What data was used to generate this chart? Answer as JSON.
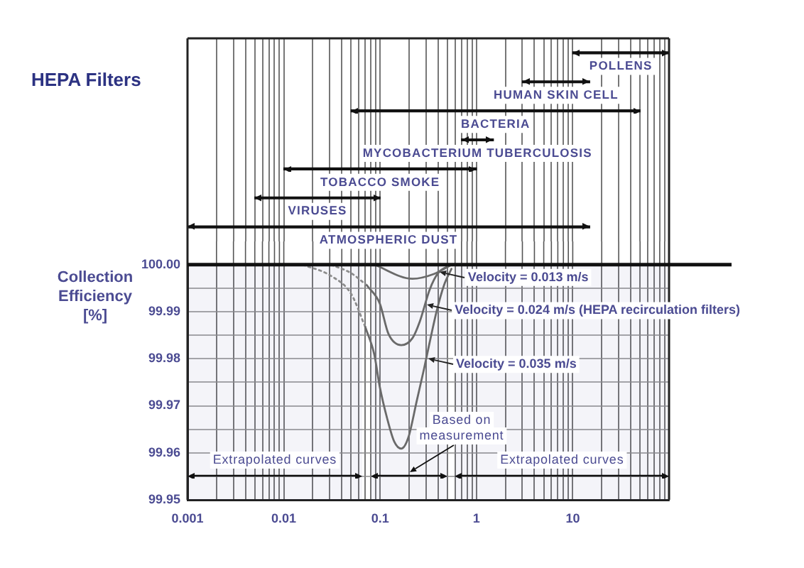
{
  "chart_data": [
    {
      "type": "bar",
      "orientation": "horizontal",
      "title": "HEPA Filters",
      "categories": [
        "POLLENS",
        "HUMAN SKIN CELL",
        "BACTERIA",
        "MYCOBACTERIUM TUBERCULOSIS",
        "TOBACCO SMOKE",
        "VIRUSES",
        "ATMOSPHERIC DUST"
      ],
      "base": [
        10,
        3,
        0.05,
        0.7,
        0.01,
        0.005,
        0.001
      ],
      "values": [
        90,
        12,
        49.95,
        0.8,
        0.99,
        0.095,
        14.999
      ],
      "color": "#111111",
      "log": "x",
      "grid": "x",
      "tick_labels": false,
      "xlim": [
        0.001,
        100
      ],
      "xticks": [
        0.001,
        {
          "value": 0.002,
          "label": null
        },
        {
          "value": 0.003,
          "label": null
        },
        {
          "value": 0.004,
          "label": null
        },
        {
          "value": 0.005,
          "label": null
        },
        {
          "value": 0.006,
          "label": null
        },
        {
          "value": 0.007,
          "label": null
        },
        {
          "value": 0.008,
          "label": null
        },
        {
          "value": 0.009,
          "label": null
        },
        0.01,
        {
          "value": 0.02,
          "label": null
        },
        {
          "value": 0.03,
          "label": null
        },
        {
          "value": 0.04,
          "label": null
        },
        {
          "value": 0.05,
          "label": null
        },
        {
          "value": 0.06,
          "label": null
        },
        {
          "value": 0.07,
          "label": null
        },
        {
          "value": 0.08,
          "label": null
        },
        {
          "value": 0.09,
          "label": null
        },
        0.1,
        {
          "value": 0.2,
          "label": null
        },
        {
          "value": 0.3,
          "label": null
        },
        {
          "value": 0.4,
          "label": null
        },
        {
          "value": 0.5,
          "label": null
        },
        {
          "value": 0.6,
          "label": null
        },
        {
          "value": 0.7,
          "label": null
        },
        {
          "value": 0.8,
          "label": null
        },
        {
          "value": 0.9,
          "label": null
        },
        1,
        {
          "value": 2,
          "label": null
        },
        {
          "value": 3,
          "label": null
        },
        {
          "value": 4,
          "label": null
        },
        {
          "value": 5,
          "label": null
        },
        {
          "value": 6,
          "label": null
        },
        {
          "value": 7,
          "label": null
        },
        {
          "value": 8,
          "label": null
        },
        {
          "value": 9,
          "label": null
        },
        10,
        {
          "value": 20,
          "label": null
        },
        {
          "value": 30,
          "label": null
        },
        {
          "value": 40,
          "label": null
        },
        {
          "value": 50,
          "label": null
        },
        {
          "value": 60,
          "label": null
        },
        {
          "value": 70,
          "label": null
        },
        {
          "value": 80,
          "label": null
        },
        {
          "value": 90,
          "label": null
        },
        {
          "value": 100,
          "label": null
        }
      ]
    },
    {
      "type": "line",
      "ylabel": "Collection Efficiency [%]",
      "log": "x",
      "grid": true,
      "xlim": [
        0.001,
        100
      ],
      "ylim": [
        99.95,
        100
      ],
      "xticks": [
        0.001,
        {
          "value": 0.002,
          "label": null
        },
        {
          "value": 0.003,
          "label": null
        },
        {
          "value": 0.004,
          "label": null
        },
        {
          "value": 0.005,
          "label": null
        },
        {
          "value": 0.006,
          "label": null
        },
        {
          "value": 0.007,
          "label": null
        },
        {
          "value": 0.008,
          "label": null
        },
        {
          "value": 0.009,
          "label": null
        },
        0.01,
        {
          "value": 0.02,
          "label": null
        },
        {
          "value": 0.03,
          "label": null
        },
        {
          "value": 0.04,
          "label": null
        },
        {
          "value": 0.05,
          "label": null
        },
        {
          "value": 0.06,
          "label": null
        },
        {
          "value": 0.07,
          "label": null
        },
        {
          "value": 0.08,
          "label": null
        },
        {
          "value": 0.09,
          "label": null
        },
        0.1,
        {
          "value": 0.2,
          "label": null
        },
        {
          "value": 0.3,
          "label": null
        },
        {
          "value": 0.4,
          "label": null
        },
        {
          "value": 0.5,
          "label": null
        },
        {
          "value": 0.6,
          "label": null
        },
        {
          "value": 0.7,
          "label": null
        },
        {
          "value": 0.8,
          "label": null
        },
        {
          "value": 0.9,
          "label": null
        },
        1,
        {
          "value": 2,
          "label": null
        },
        {
          "value": 3,
          "label": null
        },
        {
          "value": 4,
          "label": null
        },
        {
          "value": 5,
          "label": null
        },
        {
          "value": 6,
          "label": null
        },
        {
          "value": 7,
          "label": null
        },
        {
          "value": 8,
          "label": null
        },
        {
          "value": 9,
          "label": null
        },
        10,
        {
          "value": 20,
          "label": null
        },
        {
          "value": 30,
          "label": null
        },
        {
          "value": 40,
          "label": null
        },
        {
          "value": 50,
          "label": null
        },
        {
          "value": 60,
          "label": null
        },
        {
          "value": 70,
          "label": null
        },
        {
          "value": 80,
          "label": null
        },
        {
          "value": 90,
          "label": null
        },
        {
          "value": 100,
          "label": null
        }
      ],
      "yticks": [
        99.95,
        {
          "value": 99.955,
          "label": null
        },
        99.96,
        {
          "value": 99.965,
          "label": null
        },
        99.97,
        {
          "value": 99.975,
          "label": null
        },
        99.98,
        {
          "value": 99.985,
          "label": null
        },
        99.99,
        {
          "value": 99.995,
          "label": null
        },
        {
          "value": 100,
          "label": "100.00"
        }
      ],
      "series": [
        {
          "name": "Velocity = 0.013 m/s",
          "color": "#6a6a6a",
          "x": [
            0.087,
            0.217,
            0.36,
            0.55
          ],
          "values": [
            100,
            99.997,
            99.998,
            100
          ]
        },
        {
          "name": "Velocity = 0.024 m/s (HEPA recirculation filters)",
          "color": "#6a6a6a",
          "x": [
            0.073,
            0.099,
            0.122,
            0.166,
            0.217,
            0.258,
            0.327,
            0.4,
            0.55
          ],
          "values": [
            99.9956,
            99.9918,
            99.9853,
            99.9829,
            99.9844,
            99.9879,
            99.9947,
            99.9982,
            100
          ]
        },
        {
          "name": "Velocity = 0.035 m/s",
          "color": "#6a6a6a",
          "x": [
            0.07,
            0.087,
            0.099,
            0.118,
            0.14,
            0.166,
            0.196,
            0.241,
            0.286,
            0.327,
            0.388,
            0.46,
            0.55
          ],
          "values": [
            99.9868,
            99.9809,
            99.9741,
            99.9674,
            99.9624,
            99.9609,
            99.9632,
            99.9712,
            99.9779,
            99.9835,
            99.9903,
            99.9956,
            99.9991
          ]
        },
        {
          "color": "#8c8c8c",
          "line_style": "dotted",
          "x": [
            0.031,
            0.05,
            0.073
          ],
          "values": [
            100,
            99.9982,
            99.9956
          ]
        },
        {
          "color": "#8c8c8c",
          "line_style": "dotted",
          "x": [
            0.0158,
            0.031,
            0.05,
            0.07
          ],
          "values": [
            100,
            99.9976,
            99.9938,
            99.9868
          ]
        }
      ],
      "ref_lines": [
        {
          "axis": "y",
          "value": 100
        }
      ],
      "bands": [
        {
          "axis": "x",
          "from": 0.001,
          "to": 0.065,
          "label": "Extrapolated curves"
        },
        {
          "axis": "x",
          "from": 0.08,
          "to": 0.5,
          "label": "Based on measurement"
        },
        {
          "axis": "x",
          "from": 0.6,
          "to": 100,
          "label": "Extrapolated curves"
        }
      ]
    }
  ]
}
